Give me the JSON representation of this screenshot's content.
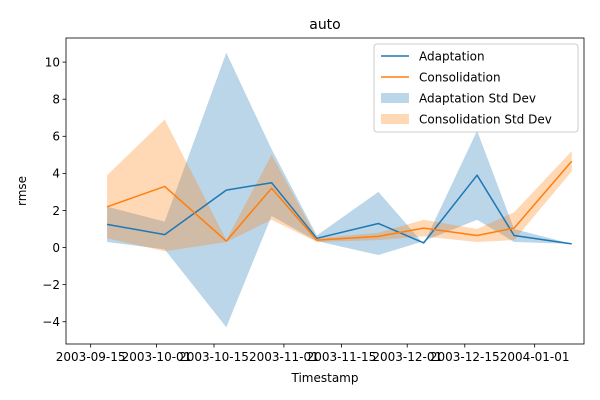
{
  "chart_data": {
    "type": "line",
    "title": "auto",
    "xlabel": "Timestamp",
    "ylabel": "rmse",
    "grid": false,
    "legend_position": "top-right",
    "x_ticks": [
      "2003-09-15",
      "2003-10-01",
      "2003-10-15",
      "2003-11-01",
      "2003-11-15",
      "2003-12-01",
      "2003-12-15",
      "2004-01-01"
    ],
    "y_ticks": [
      -4,
      -2,
      0,
      2,
      4,
      6,
      8,
      10
    ],
    "xlim": [
      "2003-09-09",
      "2004-01-13"
    ],
    "ylim": [
      -5.2,
      11.3
    ],
    "x": [
      "2003-09-19",
      "2003-10-03",
      "2003-10-18",
      "2003-10-29",
      "2003-11-09",
      "2003-11-24",
      "2003-12-05",
      "2003-12-18",
      "2003-12-27",
      "2004-01-10"
    ],
    "series": [
      {
        "name": "Adaptation",
        "color": "#1f77b4",
        "values": [
          1.25,
          0.7,
          3.1,
          3.5,
          0.5,
          1.3,
          0.25,
          3.9,
          0.65,
          0.2
        ],
        "band_lower": [
          0.3,
          -0.1,
          -4.3,
          1.7,
          0.35,
          -0.4,
          0.35,
          1.5,
          0.3,
          0.2
        ],
        "band_upper": [
          2.2,
          1.4,
          10.5,
          5.3,
          0.65,
          3.0,
          0.2,
          6.3,
          1.0,
          0.2
        ]
      },
      {
        "name": "Consolidation",
        "color": "#ff7f0e",
        "values": [
          2.2,
          3.3,
          0.35,
          3.2,
          0.4,
          0.6,
          1.05,
          0.65,
          1.05,
          4.65
        ],
        "band_lower": [
          0.5,
          -0.2,
          0.3,
          1.5,
          0.3,
          0.4,
          0.6,
          0.3,
          0.4,
          4.1
        ],
        "band_upper": [
          3.9,
          6.9,
          0.4,
          5.0,
          0.5,
          0.8,
          1.5,
          1.0,
          1.9,
          5.2
        ]
      }
    ],
    "legend": [
      {
        "label": "Adaptation",
        "kind": "line",
        "color": "#1f77b4"
      },
      {
        "label": "Consolidation",
        "kind": "line",
        "color": "#ff7f0e"
      },
      {
        "label": "Adaptation Std Dev",
        "kind": "band",
        "color": "#1f77b4"
      },
      {
        "label": "Consolidation Std Dev",
        "kind": "band",
        "color": "#ff7f0e"
      }
    ]
  }
}
